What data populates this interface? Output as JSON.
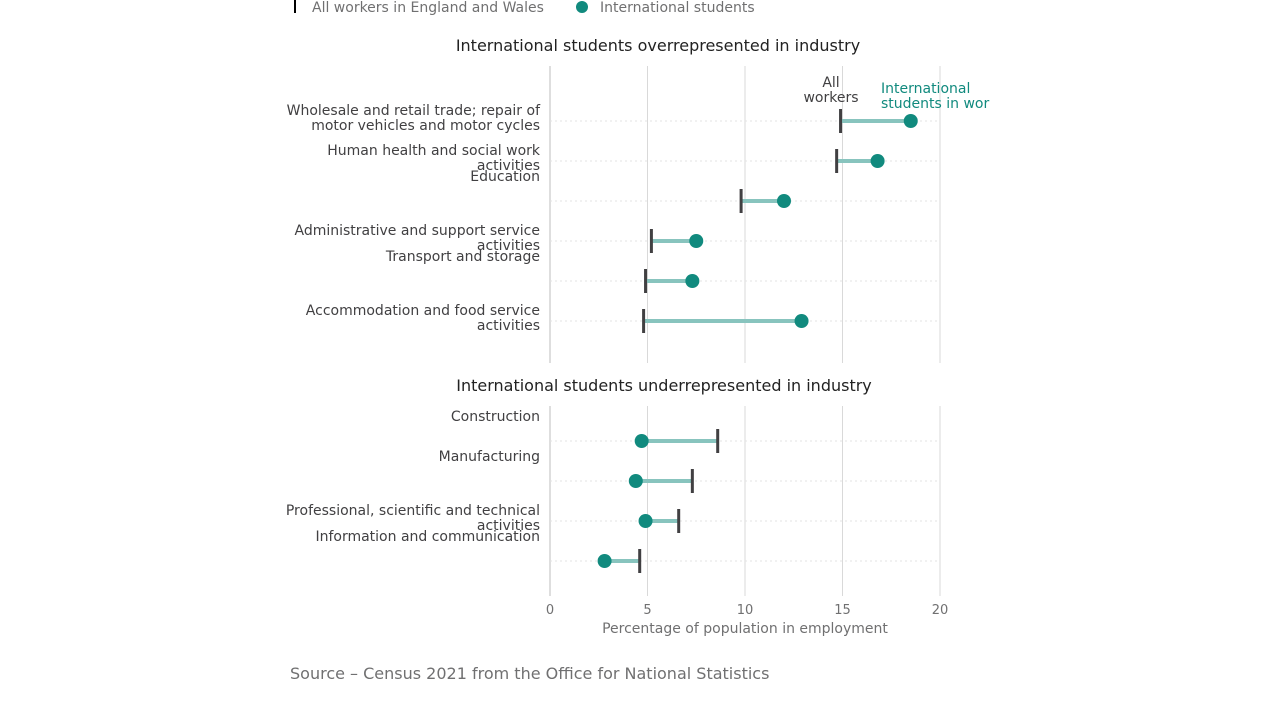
{
  "legend": {
    "all_workers_label": "All workers in England and Wales",
    "intl_students_label": "International students"
  },
  "colors": {
    "students": "#118a7e",
    "connector": "#88c4be",
    "workers": "#414042",
    "grid": "#d9d9d9",
    "baseline": "#bcbcbc",
    "row_guide": "#e3e3e3"
  },
  "annotations": {
    "all_workers_line1": "All",
    "all_workers_line2": "workers",
    "students_line1": "International",
    "students_line2": "students in work"
  },
  "source": "Source – Census 2021 from the Office for National Statistics",
  "chart_data": [
    {
      "type": "dumbbell",
      "title": "International students overrepresented in industry",
      "categories": [
        [
          "Wholesale and retail trade; repair of",
          "motor vehicles and motor cycles"
        ],
        [
          "Human health and social work",
          "activities"
        ],
        [
          "Education"
        ],
        [
          "Administrative and support service",
          "activities"
        ],
        [
          "Transport and storage"
        ],
        [
          "Accommodation and food service",
          "activities"
        ]
      ],
      "series": [
        {
          "name": "All workers in England and Wales",
          "values": [
            14.9,
            14.7,
            9.8,
            5.2,
            4.9,
            4.8
          ]
        },
        {
          "name": "International students",
          "values": [
            18.5,
            16.8,
            12.0,
            7.5,
            7.3,
            12.9
          ]
        }
      ],
      "xlim": [
        0,
        20
      ],
      "grid": true
    },
    {
      "type": "dumbbell",
      "title": "International students underrepresented in industry",
      "categories": [
        [
          "Construction"
        ],
        [
          "Manufacturing"
        ],
        [
          "Professional, scientific and technical",
          "activities"
        ],
        [
          "Information and communication"
        ]
      ],
      "series": [
        {
          "name": "All workers in England and Wales",
          "values": [
            8.6,
            7.3,
            6.6,
            4.6
          ]
        },
        {
          "name": "International students",
          "values": [
            4.7,
            4.4,
            4.9,
            2.8
          ]
        }
      ],
      "xlim": [
        0,
        20
      ],
      "xticks": [
        0,
        5,
        10,
        15,
        20
      ],
      "xlabel": "Percentage of population in employment",
      "grid": true
    }
  ]
}
